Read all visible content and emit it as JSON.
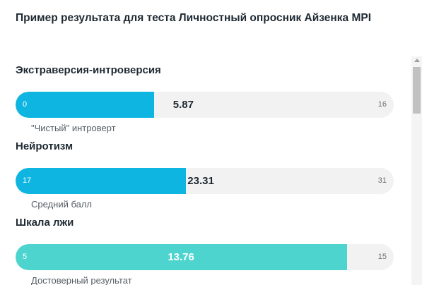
{
  "header": {
    "title": "Пример результата для теста Личностный опросник Айзенка MPI"
  },
  "scales": [
    {
      "name": "Экстраверсия-интроверсия",
      "min": "0",
      "max": "16",
      "value": "5.87",
      "fraction": 0.367,
      "color": "#0fb5e1",
      "verdict": "\"Чистый\" интроверт"
    },
    {
      "name": "Нейротизм",
      "min": "17",
      "max": "31",
      "value": "23.31",
      "fraction": 0.451,
      "color": "#0fb5e1",
      "verdict": "Средний балл"
    },
    {
      "name": "Шкала лжи",
      "min": "5",
      "max": "15",
      "value": "13.76",
      "fraction": 0.876,
      "color": "#4dd4cf",
      "verdict": "Достоверный результат"
    }
  ]
}
